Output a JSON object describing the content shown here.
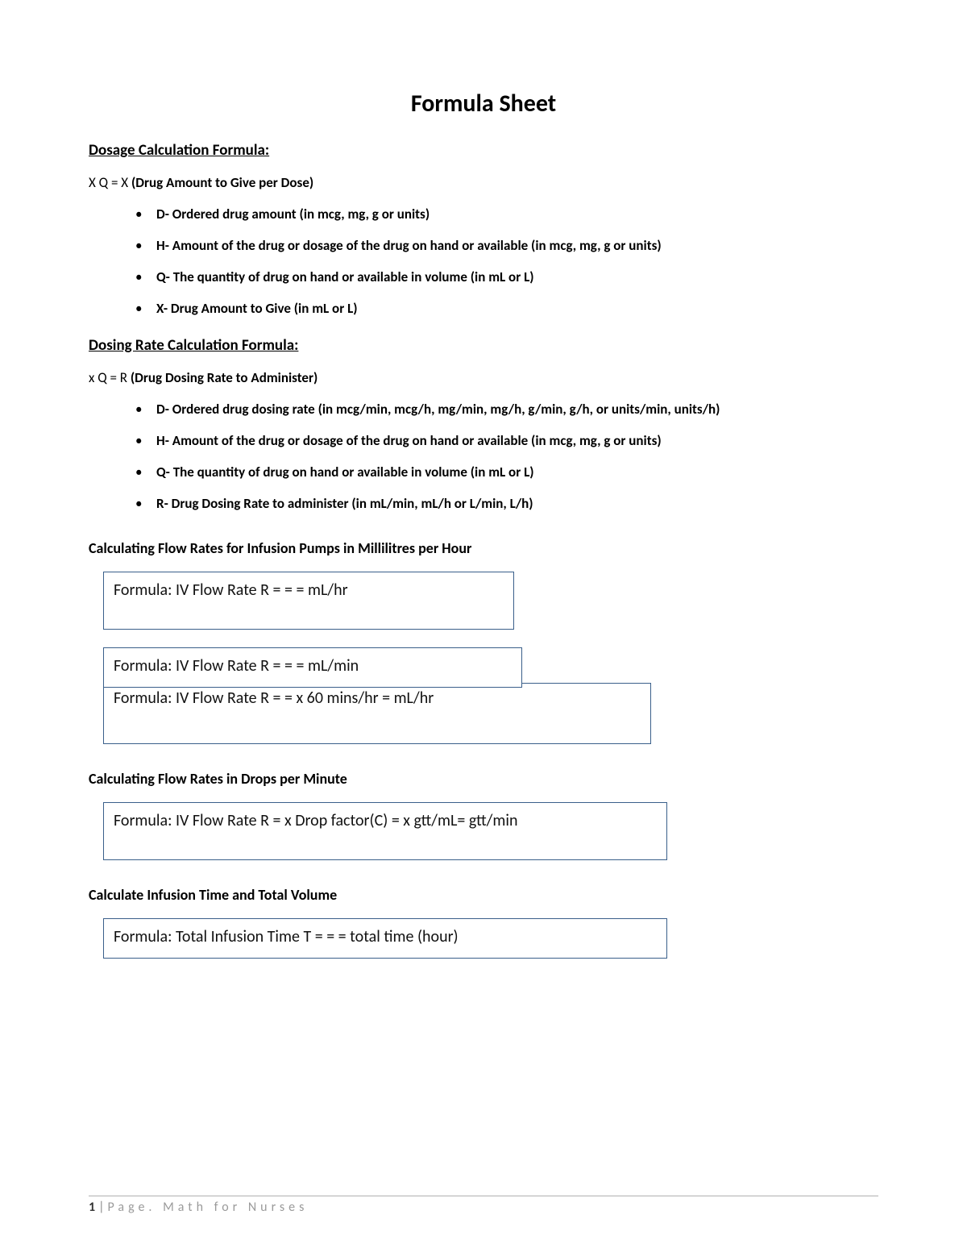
{
  "title": "Formula Sheet",
  "colors": {
    "box_border": "#3a5f8a",
    "footer_text": "#9a9a9a",
    "footer_rule": "#b0b0b0",
    "text": "#000000",
    "background": "#ffffff"
  },
  "section1": {
    "heading": "Dosage Calculation Formula:",
    "formula_lead": "X Q = X ",
    "formula_bold": "(Drug Amount to Give per Dose)",
    "items": [
      "D- Ordered drug amount (in mcg, mg, g or units)",
      "H- Amount of the drug or dosage of the drug on hand or available (in mcg, mg, g or units)",
      "Q- The quantity of drug on hand or available in volume (in mL or L)",
      " X- Drug Amount to Give (in mL or L)"
    ]
  },
  "section2": {
    "heading": "Dosing Rate Calculation Formula:",
    "formula_lead": " x Q = R ",
    "formula_bold": "(Drug Dosing Rate to Administer)",
    "items": [
      "D- Ordered drug dosing rate (in mcg/min, mcg/h, mg/min, mg/h, g/min, g/h, or units/min, units/h)",
      "H- Amount of the drug or dosage of the drug on hand or available (in mcg, mg, g or units)",
      "Q- The quantity of drug on hand or available in volume (in mL or L)",
      "R- Drug Dosing Rate to administer (in mL/min, mL/h or L/min, L/h)"
    ]
  },
  "section3": {
    "heading": "Calculating Flow Rates for Infusion Pumps in Millilitres per Hour",
    "box1": "Formula: IV Flow Rate R =  =  = mL/hr",
    "box2": "Formula: IV Flow Rate R =  =  = mL/min",
    "box3": "Formula: IV Flow Rate R =  =  x 60 mins/hr = mL/hr"
  },
  "section4": {
    "heading": "Calculating Flow Rates in Drops per Minute",
    "box": "Formula: IV Flow Rate R =  x Drop factor(C) =  x gtt/mL= gtt/min"
  },
  "section5": {
    "heading": "Calculate Infusion Time and Total Volume",
    "box": "Formula: Total Infusion Time  T =  =  = total time (hour)"
  },
  "footer": {
    "page_num": "1",
    "sep": "|",
    "text": "Page. Math for Nurses"
  }
}
